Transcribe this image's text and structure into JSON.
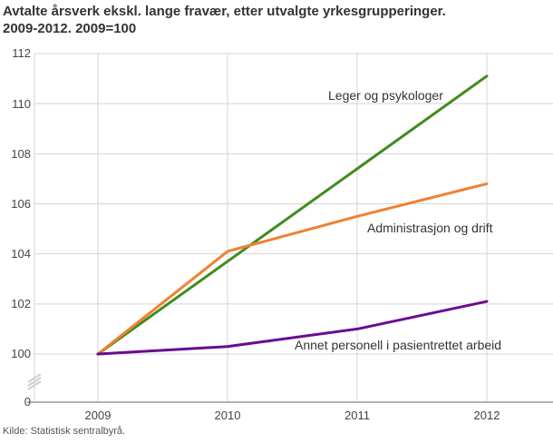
{
  "title": "Avtalte årsverk ekskl. lange fravær, etter utvalgte yrkesgrupperinger.\n2009-2012. 2009=100",
  "source": "Kilde: Statistisk sentralbyrå.",
  "axis": {
    "zero_label": "0",
    "grid_color": "#d4d4d4",
    "axis_line_color": "#b3b3b3",
    "break_mark_color": "#d0d0d0"
  },
  "chart_data": {
    "type": "line",
    "title": "Avtalte årsverk ekskl. lange fravær, etter utvalgte yrkesgrupperinger. 2009-2012. 2009=100",
    "x": [
      "2009",
      "2010",
      "2011",
      "2012"
    ],
    "yticks": [
      "100",
      "102",
      "104",
      "106",
      "108",
      "110",
      "112"
    ],
    "ylim": [
      100,
      112
    ],
    "axis_break_to_zero": true,
    "grid": true,
    "legend_position": "inline-annotations",
    "xlabel": "",
    "ylabel": "",
    "series": [
      {
        "name": "Leger og psykologer",
        "color": "#3e8c1e",
        "values": [
          100,
          103.7,
          107.4,
          111.1
        ]
      },
      {
        "name": "Administrasjon og drift",
        "color": "#f08132",
        "values": [
          100,
          104.1,
          105.5,
          106.8
        ]
      },
      {
        "name": "Annet personell i pasientrettet arbeid",
        "color": "#6a0b8f",
        "values": [
          100,
          100.3,
          101,
          102.1
        ]
      }
    ]
  }
}
